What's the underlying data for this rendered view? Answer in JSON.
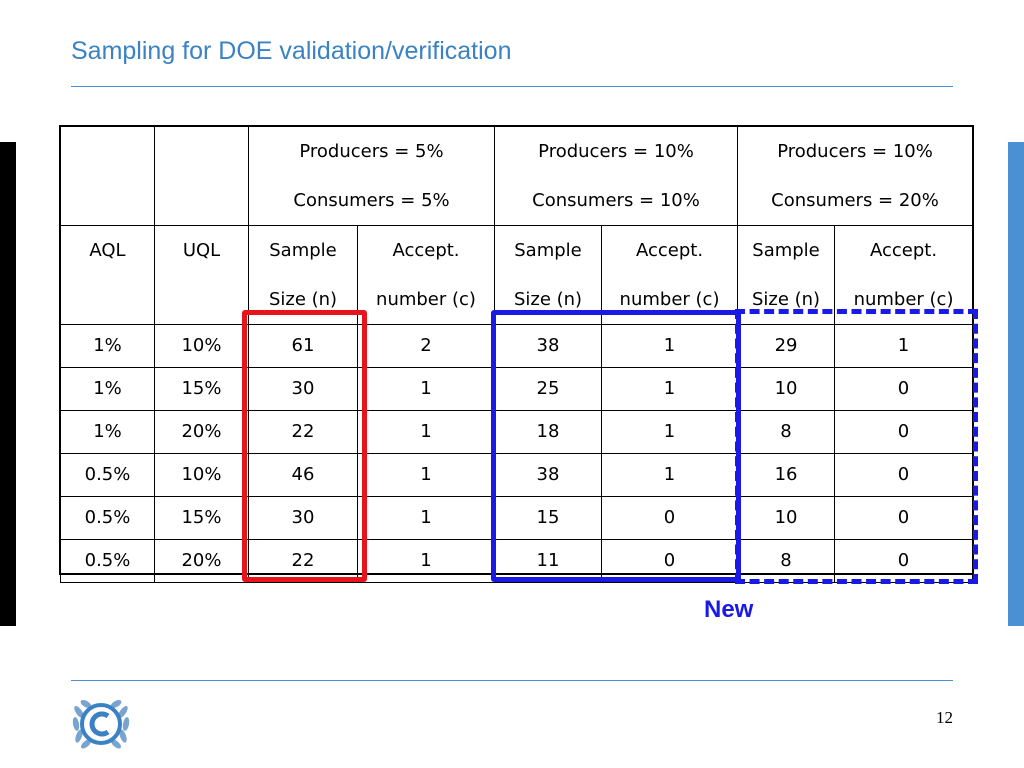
{
  "slide": {
    "title": "Sampling for DOE validation/verification",
    "new_label": "New",
    "page_number": "12"
  },
  "table": {
    "group_headers": [
      {
        "line1": "Producers = 5%",
        "line2": "Consumers = 5%"
      },
      {
        "line1": "Producers = 10%",
        "line2": "Consumers = 10%"
      },
      {
        "line1": "Producers = 10%",
        "line2": "Consumers = 20%"
      }
    ],
    "col_headers": {
      "aql": "AQL",
      "uql": "UQL",
      "sample_line1": "Sample",
      "sample_line2": "Size (n)",
      "accept_line1": "Accept.",
      "accept_line2": "number (c)"
    },
    "rows": [
      [
        "1%",
        "10%",
        "61",
        "2",
        "38",
        "1",
        "29",
        "1"
      ],
      [
        "1%",
        "15%",
        "30",
        "1",
        "25",
        "1",
        "10",
        "0"
      ],
      [
        "1%",
        "20%",
        "22",
        "1",
        "18",
        "1",
        "8",
        "0"
      ],
      [
        "0.5%",
        "10%",
        "46",
        "1",
        "38",
        "1",
        "16",
        "0"
      ],
      [
        "0.5%",
        "15%",
        "30",
        "1",
        "15",
        "0",
        "10",
        "0"
      ],
      [
        "0.5%",
        "20%",
        "22",
        "1",
        "11",
        "0",
        "8",
        "0"
      ]
    ]
  },
  "colors": {
    "title": "#3a82c4",
    "rule": "#4a90d2",
    "highlight_red": "#e8141c",
    "highlight_blue": "#1a1ae6"
  },
  "icons": {
    "logo": "unfccc-logo-icon"
  }
}
